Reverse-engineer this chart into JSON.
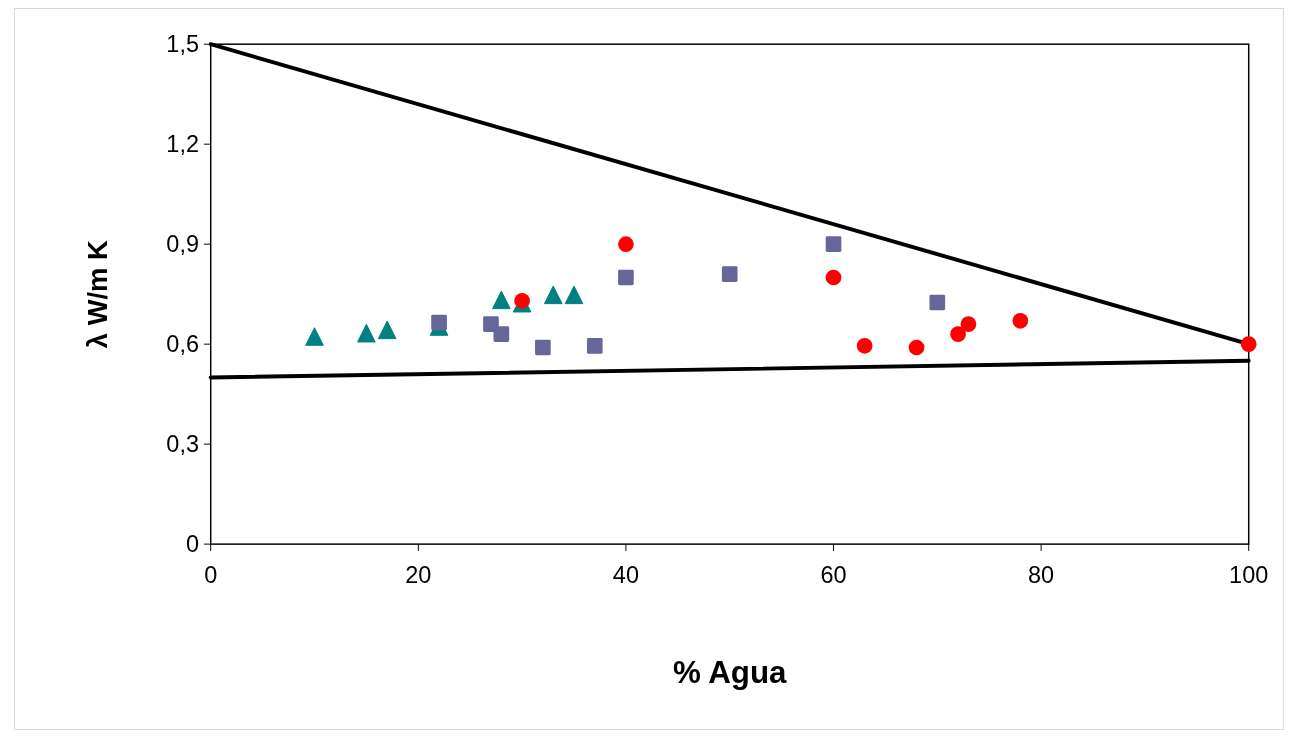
{
  "chart_data": {
    "type": "scatter",
    "xlabel": "% Agua",
    "ylabel": "λ  W/m K",
    "xlim": [
      0,
      100
    ],
    "xticks": [
      0,
      20,
      40,
      60,
      80,
      100
    ],
    "ylim": [
      0,
      1.5
    ],
    "yticks": [
      {
        "value": 0,
        "label": "0"
      },
      {
        "value": 0.3,
        "label": "0,3"
      },
      {
        "value": 0.6,
        "label": "0,6"
      },
      {
        "value": 0.9,
        "label": "0,9"
      },
      {
        "value": 1.2,
        "label": "1,2"
      },
      {
        "value": 1.5,
        "label": "1,5"
      }
    ],
    "grid": false,
    "series": [
      {
        "type": "line",
        "color": "#000000",
        "marker": "none",
        "line_style": "solid",
        "x": [
          0,
          100
        ],
        "values": [
          1.5,
          0.6
        ]
      },
      {
        "type": "line",
        "color": "#000000",
        "marker": "none",
        "line_style": "solid",
        "x": [
          0,
          100
        ],
        "values": [
          0.5,
          0.55
        ]
      },
      {
        "type": "scatter",
        "color": "#008080",
        "marker": "triangle",
        "x": [
          10,
          15,
          17,
          22,
          28,
          30,
          33,
          35
        ],
        "values": [
          0.62,
          0.63,
          0.64,
          0.65,
          0.73,
          0.72,
          0.745,
          0.745
        ]
      },
      {
        "type": "scatter",
        "color": "#666699",
        "marker": "square",
        "x": [
          22,
          27,
          28,
          32,
          37,
          40,
          50,
          60,
          70
        ],
        "values": [
          0.665,
          0.66,
          0.63,
          0.59,
          0.595,
          0.8,
          0.81,
          0.9,
          0.725
        ]
      },
      {
        "type": "scatter",
        "color": "#ff0000",
        "marker": "circle",
        "x": [
          30,
          40,
          60,
          63,
          68,
          72,
          73,
          78,
          100
        ],
        "values": [
          0.73,
          0.9,
          0.8,
          0.595,
          0.59,
          0.63,
          0.66,
          0.67,
          0.6
        ]
      }
    ]
  }
}
